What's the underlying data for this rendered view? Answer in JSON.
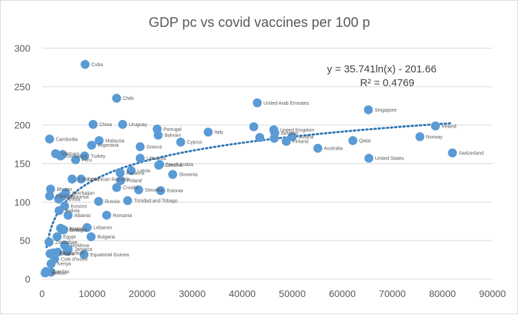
{
  "chart_data": {
    "type": "scatter",
    "title": "GDP pc vs covid vaccines per 100 p",
    "xlabel": "",
    "ylabel": "",
    "xlim": [
      0,
      90000
    ],
    "ylim": [
      0,
      300
    ],
    "x_ticks": [
      "0",
      "10000",
      "20000",
      "30000",
      "40000",
      "50000",
      "60000",
      "70000",
      "80000",
      "90000"
    ],
    "y_ticks": [
      "0",
      "50",
      "100",
      "150",
      "200",
      "250",
      "300"
    ],
    "grid": "horizontal",
    "marker_color": "#5b9bd5",
    "trendline": {
      "type": "logarithmic",
      "a": 35.741,
      "b": -201.66,
      "x_range": [
        900,
        82000
      ],
      "equation": "y = 35.741ln(x) - 201.66",
      "r_squared": "R² = 0.4769",
      "color": "#2e75b6"
    },
    "points": [
      {
        "label": "Cuba",
        "x": 8600,
        "y": 279
      },
      {
        "label": "Chile",
        "x": 14900,
        "y": 235
      },
      {
        "label": "China",
        "x": 10200,
        "y": 201
      },
      {
        "label": "Uruguay",
        "x": 16100,
        "y": 201
      },
      {
        "label": "Portugal",
        "x": 23000,
        "y": 195
      },
      {
        "label": "Bahrain",
        "x": 23200,
        "y": 187
      },
      {
        "label": "Italy",
        "x": 33200,
        "y": 191
      },
      {
        "label": "Cyprus",
        "x": 27700,
        "y": 178
      },
      {
        "label": "United Arab Emirates",
        "x": 43000,
        "y": 229
      },
      {
        "label": "Singapore",
        "x": 65200,
        "y": 220
      },
      {
        "label": "Ireland",
        "x": 78600,
        "y": 199
      },
      {
        "label": "Norway",
        "x": 75500,
        "y": 185
      },
      {
        "label": "Switzerland",
        "x": 82000,
        "y": 164
      },
      {
        "label": "United Kingdom",
        "x": 46300,
        "y": 194
      },
      {
        "label": "Belgium",
        "x": 46500,
        "y": 190
      },
      {
        "label": "Austria",
        "x": 50000,
        "y": 185
      },
      {
        "label": "Finland",
        "x": 48800,
        "y": 179
      },
      {
        "label": "",
        "x": 42300,
        "y": 198
      },
      {
        "label": "",
        "x": 43500,
        "y": 184
      },
      {
        "label": "",
        "x": 46400,
        "y": 183
      },
      {
        "label": "Australia",
        "x": 55100,
        "y": 170
      },
      {
        "label": "Qatar",
        "x": 62100,
        "y": 180
      },
      {
        "label": "United States",
        "x": 65300,
        "y": 157
      },
      {
        "label": "Malaysia",
        "x": 11400,
        "y": 180
      },
      {
        "label": "Argentina",
        "x": 9900,
        "y": 174
      },
      {
        "label": "Greece",
        "x": 19600,
        "y": 172
      },
      {
        "label": "Lithuania",
        "x": 19600,
        "y": 157
      },
      {
        "label": "Czechia",
        "x": 23300,
        "y": 148
      },
      {
        "label": "Saudi Arabia",
        "x": 23500,
        "y": 149
      },
      {
        "label": "Slovenia",
        "x": 26100,
        "y": 136
      },
      {
        "label": "Latvia",
        "x": 17800,
        "y": 141
      },
      {
        "label": "Panama",
        "x": 15600,
        "y": 138
      },
      {
        "label": "Poland",
        "x": 15700,
        "y": 128
      },
      {
        "label": "Croatia",
        "x": 14900,
        "y": 119
      },
      {
        "label": "Slovakia",
        "x": 19300,
        "y": 116
      },
      {
        "label": "Estonia",
        "x": 23700,
        "y": 115
      },
      {
        "label": "Trinidad and Tobago",
        "x": 17100,
        "y": 102
      },
      {
        "label": "Russia",
        "x": 11300,
        "y": 101
      },
      {
        "label": "Romania",
        "x": 12900,
        "y": 83
      },
      {
        "label": "Cambodia",
        "x": 1500,
        "y": 182
      },
      {
        "label": "Vietnam",
        "x": 2700,
        "y": 163
      },
      {
        "label": "Sri Lanka",
        "x": 3700,
        "y": 160
      },
      {
        "label": "",
        "x": 4100,
        "y": 162
      },
      {
        "label": "Turkey",
        "x": 8500,
        "y": 160
      },
      {
        "label": "Peru",
        "x": 6700,
        "y": 155
      },
      {
        "label": "Colombia",
        "x": 6000,
        "y": 130
      },
      {
        "label": "Dominican Republic",
        "x": 7800,
        "y": 130
      },
      {
        "label": "Azerbaijan",
        "x": 4700,
        "y": 112
      },
      {
        "label": "Bhutan",
        "x": 1700,
        "y": 117
      },
      {
        "label": "Pakistan",
        "x": 1500,
        "y": 108
      },
      {
        "label": "Indonesia",
        "x": 3900,
        "y": 107
      },
      {
        "label": "Tunisia",
        "x": 3300,
        "y": 104
      },
      {
        "label": "Kosovo",
        "x": 4500,
        "y": 95
      },
      {
        "label": "Bolivia",
        "x": 3400,
        "y": 89
      },
      {
        "label": "Albania",
        "x": 5200,
        "y": 83
      },
      {
        "label": "Lebanon",
        "x": 9000,
        "y": 67
      },
      {
        "label": "Ukraine",
        "x": 3700,
        "y": 66
      },
      {
        "label": "Jordan",
        "x": 4100,
        "y": 64
      },
      {
        "label": "Georgia",
        "x": 4300,
        "y": 64
      },
      {
        "label": "Egypt",
        "x": 3000,
        "y": 55
      },
      {
        "label": "Bulgaria",
        "x": 9800,
        "y": 55
      },
      {
        "label": "Zimbabwe",
        "x": 1400,
        "y": 48
      },
      {
        "label": "Moldova",
        "x": 4500,
        "y": 44
      },
      {
        "label": "Jamaica",
        "x": 5200,
        "y": 39
      },
      {
        "label": "Bangladesh",
        "x": 2200,
        "y": 34
      },
      {
        "label": "Ghana",
        "x": 2300,
        "y": 33
      },
      {
        "label": "Equatorial Guinea",
        "x": 8400,
        "y": 32
      },
      {
        "label": "Cote d'Ivoire",
        "x": 2500,
        "y": 26
      },
      {
        "label": "Kenya",
        "x": 1800,
        "y": 20
      },
      {
        "label": "Gambia",
        "x": 800,
        "y": 10
      },
      {
        "label": "Malawi",
        "x": 600,
        "y": 8
      },
      {
        "label": "",
        "x": 1600,
        "y": 33
      },
      {
        "label": "",
        "x": 3100,
        "y": 35
      },
      {
        "label": "",
        "x": 5000,
        "y": 36
      },
      {
        "label": "",
        "x": 1800,
        "y": 9
      }
    ]
  }
}
